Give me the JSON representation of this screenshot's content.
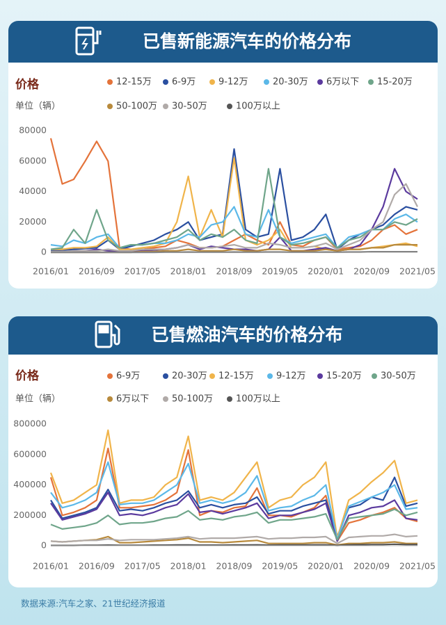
{
  "chart_data": [
    {
      "type": "line",
      "title": "已售新能源汽车的价格分布",
      "y_label": "价格",
      "unit_label": "单位（辆）",
      "x": [
        "2016/01",
        "2016/03",
        "2016/05",
        "2016/07",
        "2016/09",
        "2016/11",
        "2017/01",
        "2017/03",
        "2017/05",
        "2017/07",
        "2017/09",
        "2017/11",
        "2018/01",
        "2018/03",
        "2018/05",
        "2018/07",
        "2018/09",
        "2018/11",
        "2019/01",
        "2019/03",
        "2019/05",
        "2019/07",
        "2019/09",
        "2019/11",
        "2020/01",
        "2020/03",
        "2020/05",
        "2020/07",
        "2020/09",
        "2020/11",
        "2021/01",
        "2021/03",
        "2021/05"
      ],
      "xticks": [
        "2016/01",
        "2016/09",
        "2017/05",
        "2018/01",
        "2018/09",
        "2019/05",
        "2020/01",
        "2020/09",
        "2021/05"
      ],
      "ylim": [
        0,
        80000
      ],
      "yticks": [
        0,
        20000,
        40000,
        60000,
        80000
      ],
      "series": [
        {
          "name": "12-15万",
          "color": "#e4733a",
          "values": [
            75000,
            45000,
            48000,
            60000,
            73000,
            60000,
            3000,
            2000,
            2000,
            3000,
            4000,
            8000,
            6000,
            3000,
            3000,
            4000,
            8000,
            12000,
            8000,
            5000,
            20000,
            5000,
            4000,
            8000,
            10000,
            2000,
            3000,
            4000,
            8000,
            15000,
            18000,
            12000,
            15000
          ]
        },
        {
          "name": "6-9万",
          "color": "#2a4fa0",
          "values": [
            1000,
            1500,
            2000,
            2500,
            3000,
            8000,
            2000,
            4000,
            6000,
            8000,
            12000,
            15000,
            20000,
            8000,
            10000,
            12000,
            68000,
            15000,
            10000,
            12000,
            55000,
            8000,
            10000,
            15000,
            25000,
            2000,
            8000,
            12000,
            15000,
            18000,
            25000,
            30000,
            28000
          ]
        },
        {
          "name": "9-12万",
          "color": "#f0b44a",
          "values": [
            2000,
            2000,
            3000,
            3000,
            4000,
            10000,
            2000,
            2000,
            3000,
            4000,
            6000,
            20000,
            50000,
            10000,
            28000,
            10000,
            62000,
            8000,
            5000,
            8000,
            15000,
            3000,
            3000,
            4000,
            2000,
            1000,
            2000,
            2000,
            3000,
            4000,
            5000,
            6000,
            4000
          ]
        },
        {
          "name": "20-30万",
          "color": "#5bb8e8",
          "values": [
            5000,
            4000,
            8000,
            6000,
            10000,
            12000,
            3000,
            5000,
            5000,
            6000,
            6000,
            8000,
            12000,
            10000,
            18000,
            20000,
            30000,
            12000,
            10000,
            28000,
            10000,
            6000,
            8000,
            10000,
            12000,
            3000,
            10000,
            12000,
            15000,
            15000,
            22000,
            25000,
            20000
          ]
        },
        {
          "name": "6万以下",
          "color": "#5b3a9e",
          "values": [
            500,
            500,
            1000,
            1000,
            2000,
            1000,
            500,
            1000,
            1000,
            1500,
            2000,
            3000,
            5000,
            2000,
            4000,
            3000,
            2000,
            2000,
            1000,
            2000,
            10000,
            1000,
            1000,
            2000,
            3000,
            1000,
            2000,
            5000,
            15000,
            30000,
            55000,
            40000,
            35000
          ]
        },
        {
          "name": "15-20万",
          "color": "#6fa58a",
          "values": [
            2000,
            3000,
            15000,
            6000,
            28000,
            8000,
            3000,
            5000,
            5000,
            6000,
            8000,
            10000,
            15000,
            8000,
            12000,
            10000,
            15000,
            8000,
            6000,
            55000,
            10000,
            5000,
            6000,
            8000,
            10000,
            3000,
            8000,
            10000,
            15000,
            15000,
            20000,
            18000,
            22000
          ]
        },
        {
          "name": "50-100万",
          "color": "#b88a3c",
          "values": [
            0,
            0,
            0,
            0,
            0,
            0,
            0,
            0,
            500,
            500,
            1000,
            1000,
            2000,
            1000,
            1000,
            1000,
            2000,
            1000,
            1000,
            2000,
            2000,
            1000,
            1000,
            1000,
            2000,
            1000,
            2000,
            2000,
            3000,
            3000,
            5000,
            5000,
            5000
          ]
        },
        {
          "name": "30-50万",
          "color": "#b0aaa8",
          "values": [
            500,
            500,
            1000,
            1000,
            1000,
            2000,
            1000,
            1000,
            2000,
            2000,
            2000,
            3000,
            5000,
            3000,
            3000,
            4000,
            5000,
            3000,
            3000,
            6000,
            5000,
            3000,
            3000,
            4000,
            6000,
            2000,
            5000,
            8000,
            15000,
            20000,
            38000,
            45000,
            30000
          ]
        },
        {
          "name": "100万以上",
          "color": "#555555",
          "values": [
            0,
            0,
            0,
            0,
            0,
            0,
            0,
            0,
            0,
            0,
            100,
            100,
            200,
            100,
            100,
            100,
            200,
            100,
            100,
            200,
            200,
            100,
            100,
            100,
            200,
            100,
            200,
            200,
            300,
            300,
            300,
            300,
            300
          ]
        }
      ]
    },
    {
      "type": "line",
      "title": "已售燃油汽车的价格分布",
      "y_label": "价格",
      "unit_label": "单位（辆）",
      "x": [
        "2016/01",
        "2016/03",
        "2016/05",
        "2016/07",
        "2016/09",
        "2016/11",
        "2017/01",
        "2017/03",
        "2017/05",
        "2017/07",
        "2017/09",
        "2017/11",
        "2018/01",
        "2018/03",
        "2018/05",
        "2018/07",
        "2018/09",
        "2018/11",
        "2019/01",
        "2019/03",
        "2019/05",
        "2019/07",
        "2019/09",
        "2019/11",
        "2020/01",
        "2020/03",
        "2020/05",
        "2020/07",
        "2020/09",
        "2020/11",
        "2021/01",
        "2021/03",
        "2021/05"
      ],
      "xticks": [
        "2016/01",
        "2016/09",
        "2017/05",
        "2018/01",
        "2018/09",
        "2019/05",
        "2020/01",
        "2020/09",
        "2021/05"
      ],
      "ylim": [
        0,
        800000
      ],
      "yticks": [
        0,
        200000,
        400000,
        600000,
        800000
      ],
      "series": [
        {
          "name": "6-9万",
          "color": "#e4733a",
          "values": [
            450000,
            200000,
            220000,
            250000,
            300000,
            640000,
            250000,
            250000,
            260000,
            270000,
            300000,
            350000,
            630000,
            200000,
            230000,
            220000,
            250000,
            260000,
            380000,
            200000,
            200000,
            190000,
            220000,
            250000,
            330000,
            30000,
            150000,
            170000,
            200000,
            220000,
            250000,
            180000,
            160000
          ]
        },
        {
          "name": "20-30万",
          "color": "#2a4fa0",
          "values": [
            300000,
            180000,
            200000,
            220000,
            250000,
            370000,
            230000,
            240000,
            230000,
            250000,
            280000,
            300000,
            360000,
            250000,
            270000,
            250000,
            270000,
            280000,
            320000,
            210000,
            230000,
            230000,
            260000,
            280000,
            300000,
            60000,
            250000,
            270000,
            320000,
            300000,
            450000,
            260000,
            280000
          ]
        },
        {
          "name": "12-15万",
          "color": "#f0b44a",
          "values": [
            480000,
            280000,
            300000,
            350000,
            400000,
            760000,
            280000,
            300000,
            300000,
            320000,
            400000,
            450000,
            720000,
            300000,
            320000,
            300000,
            350000,
            450000,
            550000,
            250000,
            300000,
            320000,
            400000,
            450000,
            550000,
            50000,
            300000,
            350000,
            420000,
            480000,
            560000,
            280000,
            300000
          ]
        },
        {
          "name": "9-12万",
          "color": "#5bb8e8",
          "values": [
            350000,
            250000,
            270000,
            300000,
            350000,
            550000,
            270000,
            280000,
            280000,
            300000,
            350000,
            400000,
            540000,
            280000,
            300000,
            280000,
            300000,
            350000,
            460000,
            230000,
            250000,
            260000,
            300000,
            330000,
            400000,
            40000,
            260000,
            290000,
            320000,
            350000,
            400000,
            240000,
            250000
          ]
        },
        {
          "name": "15-20万",
          "color": "#5b3a9e",
          "values": [
            280000,
            170000,
            190000,
            210000,
            240000,
            350000,
            200000,
            210000,
            200000,
            220000,
            250000,
            270000,
            340000,
            220000,
            230000,
            210000,
            230000,
            250000,
            280000,
            180000,
            200000,
            200000,
            220000,
            240000,
            280000,
            30000,
            200000,
            220000,
            250000,
            260000,
            300000,
            180000,
            170000
          ]
        },
        {
          "name": "30-50万",
          "color": "#6fa58a",
          "values": [
            140000,
            110000,
            120000,
            130000,
            150000,
            200000,
            140000,
            150000,
            150000,
            160000,
            180000,
            190000,
            230000,
            170000,
            180000,
            170000,
            190000,
            200000,
            220000,
            150000,
            170000,
            170000,
            180000,
            190000,
            210000,
            40000,
            180000,
            190000,
            200000,
            210000,
            240000,
            200000,
            220000
          ]
        },
        {
          "name": "6万以下",
          "color": "#b88a3c",
          "values": [
            30000,
            25000,
            30000,
            35000,
            40000,
            60000,
            20000,
            20000,
            25000,
            30000,
            35000,
            40000,
            50000,
            25000,
            25000,
            20000,
            25000,
            30000,
            35000,
            15000,
            15000,
            15000,
            15000,
            20000,
            20000,
            5000,
            15000,
            15000,
            20000,
            20000,
            25000,
            15000,
            15000
          ]
        },
        {
          "name": "50-100万",
          "color": "#b0aaa8",
          "values": [
            30000,
            25000,
            30000,
            35000,
            35000,
            45000,
            35000,
            40000,
            40000,
            40000,
            45000,
            50000,
            60000,
            45000,
            50000,
            50000,
            50000,
            55000,
            60000,
            45000,
            50000,
            50000,
            55000,
            55000,
            60000,
            15000,
            55000,
            60000,
            65000,
            65000,
            75000,
            60000,
            65000
          ]
        },
        {
          "name": "100万以上",
          "color": "#555555",
          "values": [
            2000,
            2000,
            2000,
            3000,
            3000,
            4000,
            3000,
            3000,
            3000,
            4000,
            4000,
            5000,
            5000,
            4000,
            4000,
            4000,
            5000,
            5000,
            6000,
            4000,
            5000,
            5000,
            5000,
            6000,
            6000,
            2000,
            6000,
            7000,
            8000,
            8000,
            10000,
            8000,
            8000
          ]
        }
      ]
    }
  ],
  "source": "数据来源:汽车之家、21世纪经济报道"
}
